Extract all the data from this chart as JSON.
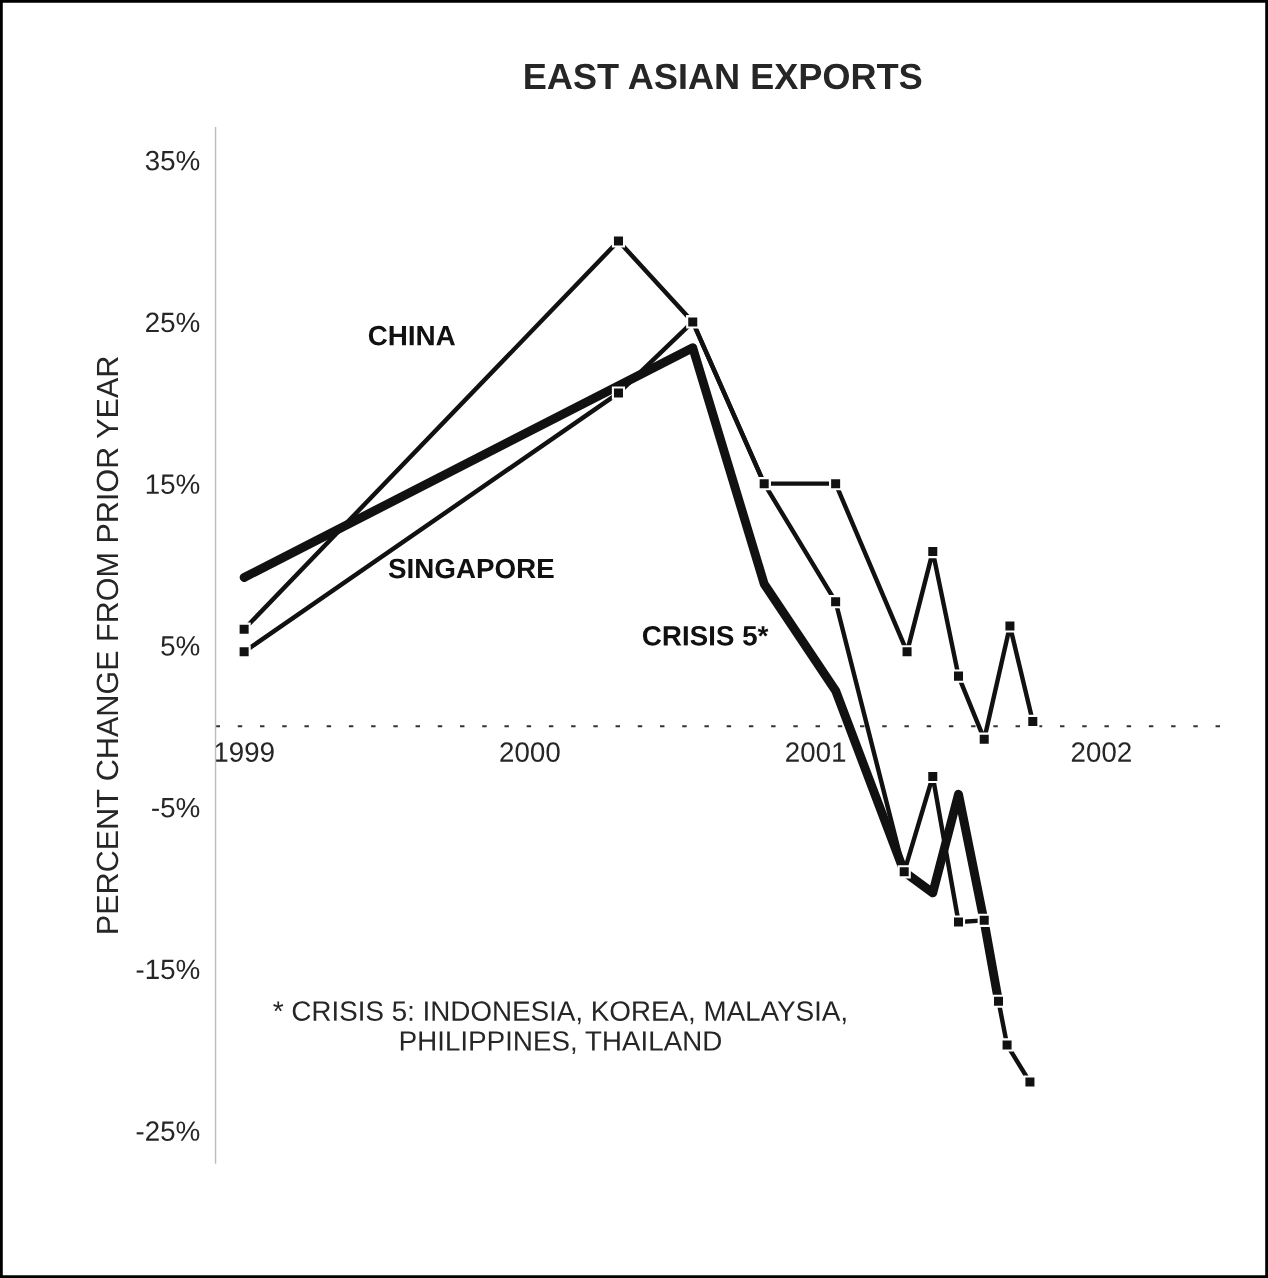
{
  "chart_data": {
    "type": "line",
    "title": "EAST ASIAN EXPORTS",
    "ylabel": "PERCENT CHANGE FROM PRIOR YEAR",
    "xlim": [
      1998.9,
      2002.45
    ],
    "xticks": [
      1999,
      2000,
      2001,
      2002
    ],
    "ylim": [
      -27,
      37
    ],
    "yticks": [
      {
        "value": 35,
        "label": "35%"
      },
      {
        "value": 25,
        "label": "25%"
      },
      {
        "value": 15,
        "label": "15%"
      },
      {
        "value": 5,
        "label": "5%"
      },
      {
        "value": -5,
        "label": "-5%"
      },
      {
        "value": -15,
        "label": "-15%"
      },
      {
        "value": -25,
        "label": "-25%"
      }
    ],
    "ref_lines": [
      {
        "axis": "y",
        "value": 0,
        "color": "#333333",
        "line_style": "dotted"
      }
    ],
    "grid": false,
    "legend": false,
    "marker": "square",
    "series": [
      {
        "name": "CHINA",
        "color": "#111111",
        "x": [
          1999,
          2000.31,
          2000.57,
          2000.82,
          2001.07,
          2001.32,
          2001.41,
          2001.5,
          2001.59,
          2001.68,
          2001.76
        ],
        "values": [
          6,
          30,
          25,
          15,
          15,
          4.6,
          10.8,
          3.1,
          -0.8,
          6.2,
          0.3
        ]
      },
      {
        "name": "SINGAPORE",
        "color": "#111111",
        "x": [
          1999,
          2000.31,
          2000.57,
          2000.82,
          2001.07,
          2001.31,
          2001.41,
          2001.5,
          2001.59,
          2001.64,
          2001.67,
          2001.75
        ],
        "values": [
          4.6,
          20.6,
          25,
          15,
          7.7,
          -9,
          -3.1,
          -12.1,
          -12,
          -17,
          -19.7,
          -22
        ]
      },
      {
        "name": "CRISIS 5*",
        "color": "#111111",
        "marker": "none",
        "x": [
          1999,
          2000.57,
          2000.82,
          2001.07,
          2001.31,
          2001.41,
          2001.5,
          2001.59,
          2001.64
        ],
        "values": [
          9.2,
          23.4,
          8.8,
          2.2,
          -9,
          -10.3,
          -4.2,
          -12.1,
          -17
        ]
      }
    ],
    "annotations": [
      "* CRISIS 5: INDONESIA, KOREA, MALAYSIA,\nPHILIPPINES, THAILAND"
    ]
  }
}
